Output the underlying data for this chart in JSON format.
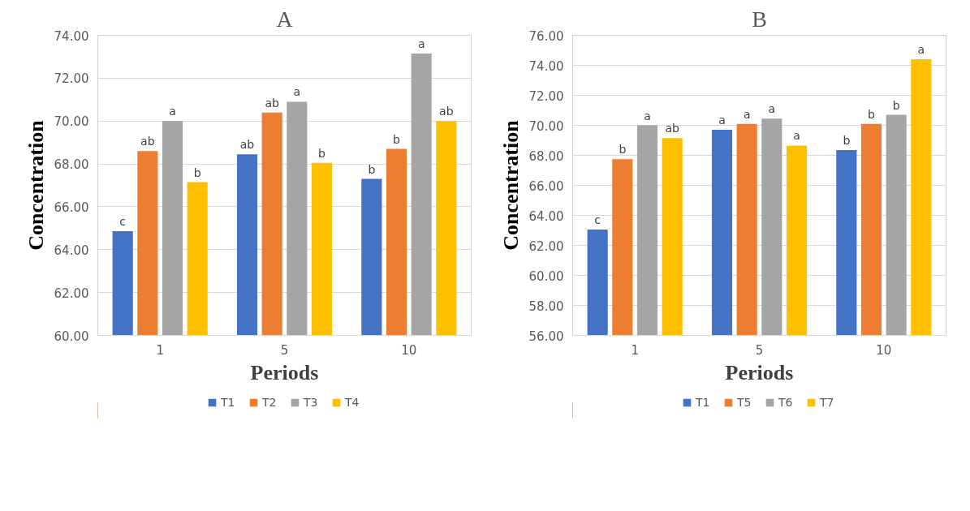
{
  "chart_data": [
    {
      "type": "bar",
      "title": "A",
      "xlabel": "Periods",
      "ylabel": "Concentration",
      "categories": [
        "1",
        "5",
        "10"
      ],
      "ylim": [
        60,
        74
      ],
      "yticks": [
        {
          "value": 60,
          "label": "60.00"
        },
        {
          "value": 62,
          "label": "62.00"
        },
        {
          "value": 64,
          "label": "64.00"
        },
        {
          "value": 66,
          "label": "66.00"
        },
        {
          "value": 68,
          "label": "68.00"
        },
        {
          "value": 70,
          "label": "70.00"
        },
        {
          "value": 72,
          "label": "72.00"
        },
        {
          "value": 74,
          "label": "74.00"
        }
      ],
      "grid": "y",
      "legend": "bottom",
      "series": [
        {
          "name": "T1",
          "color": "#4472c4",
          "values": [
            64.86,
            68.45,
            67.3
          ],
          "value_labels": [
            "c",
            "ab",
            "b"
          ]
        },
        {
          "name": "T2",
          "color": "#ed7d31",
          "values": [
            68.6,
            70.4,
            68.7
          ],
          "value_labels": [
            "ab",
            "ab",
            "b"
          ]
        },
        {
          "name": "T3",
          "color": "#a5a5a5",
          "values": [
            70.0,
            70.9,
            73.15
          ],
          "value_labels": [
            "a",
            "a",
            "a"
          ]
        },
        {
          "name": "T4",
          "color": "#ffc000",
          "values": [
            67.15,
            68.05,
            70.0
          ],
          "value_labels": [
            "b",
            "b",
            "ab"
          ]
        }
      ]
    },
    {
      "type": "bar",
      "title": "B",
      "xlabel": "Periods",
      "ylabel": "Concentration",
      "categories": [
        "1",
        "5",
        "10"
      ],
      "ylim": [
        56,
        76
      ],
      "yticks": [
        {
          "value": 56,
          "label": "56.00"
        },
        {
          "value": 58,
          "label": "58.00"
        },
        {
          "value": 60,
          "label": "60.00"
        },
        {
          "value": 62,
          "label": "62.00"
        },
        {
          "value": 64,
          "label": "64.00"
        },
        {
          "value": 66,
          "label": "66.00"
        },
        {
          "value": 68,
          "label": "68.00"
        },
        {
          "value": 70,
          "label": "70.00"
        },
        {
          "value": 72,
          "label": "72.00"
        },
        {
          "value": 74,
          "label": "74.00"
        },
        {
          "value": 76,
          "label": "76.00"
        }
      ],
      "grid": "y",
      "legend": "bottom",
      "series": [
        {
          "name": "T1",
          "color": "#4472c4",
          "values": [
            63.05,
            69.7,
            68.35
          ],
          "value_labels": [
            "c",
            "a",
            "b"
          ]
        },
        {
          "name": "T5",
          "color": "#ed7d31",
          "values": [
            67.75,
            70.1,
            70.1
          ],
          "value_labels": [
            "b",
            "a",
            "b"
          ]
        },
        {
          "name": "T6",
          "color": "#a5a5a5",
          "values": [
            70.0,
            70.45,
            70.7
          ],
          "value_labels": [
            "a",
            "a",
            "b"
          ]
        },
        {
          "name": "T7",
          "color": "#ffc000",
          "values": [
            69.15,
            68.65,
            74.4
          ],
          "value_labels": [
            "ab",
            "a",
            "a"
          ]
        }
      ]
    }
  ]
}
